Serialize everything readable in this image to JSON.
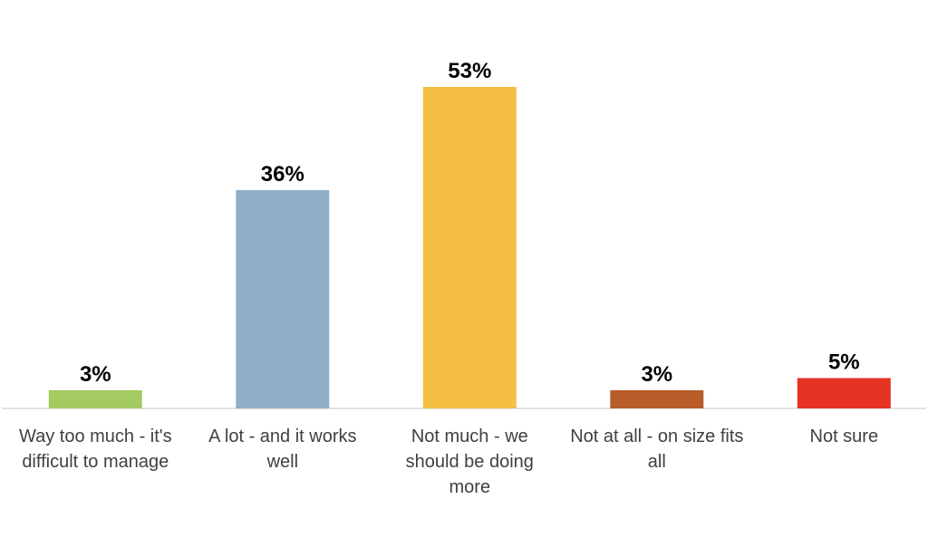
{
  "chart_data": {
    "type": "bar",
    "categories": [
      [
        "Way too much - it's",
        "difficult to manage"
      ],
      [
        "A lot - and it works",
        "well"
      ],
      [
        "Not much - we",
        "should be doing",
        "more"
      ],
      [
        "Not at all - on size fits",
        "all"
      ],
      [
        "Not sure"
      ]
    ],
    "values": [
      3,
      36,
      53,
      3,
      5
    ],
    "data_labels": [
      "3%",
      "36%",
      "53%",
      "3%",
      "5%"
    ],
    "colors": [
      "#a3cb62",
      "#8fafc8",
      "#f4bf42",
      "#b85c2a",
      "#e63223"
    ],
    "ylim": [
      0,
      60
    ],
    "grid": false,
    "legend": "none",
    "title": "",
    "xlabel": "",
    "ylabel": ""
  }
}
